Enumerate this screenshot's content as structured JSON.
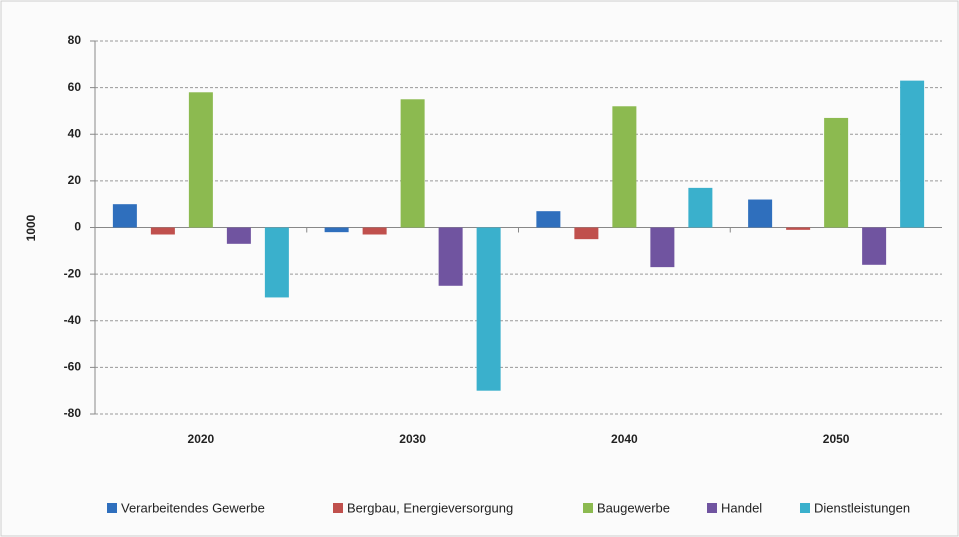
{
  "chart_data": {
    "type": "bar",
    "y_label": "1000",
    "categories": [
      "2020",
      "2030",
      "2040",
      "2050"
    ],
    "series": [
      {
        "name": "Verarbeitendes Gewerbe",
        "color": "#2f6fbd",
        "values": [
          10,
          -2,
          7,
          12
        ]
      },
      {
        "name": "Bergbau, Energieversorgung",
        "color": "#c0504d",
        "values": [
          -3,
          -3,
          -5,
          -1
        ]
      },
      {
        "name": "Baugewerbe",
        "color": "#8cba50",
        "values": [
          58,
          55,
          52,
          47
        ]
      },
      {
        "name": "Handel",
        "color": "#7054a0",
        "values": [
          -7,
          -25,
          -17,
          -16
        ]
      },
      {
        "name": "Dienstleistungen",
        "color": "#3ab0cc",
        "values": [
          -30,
          -70,
          17,
          63
        ]
      }
    ],
    "ylim": [
      -80,
      80
    ],
    "yticks": [
      -80,
      -60,
      -40,
      -20,
      0,
      20,
      40,
      60,
      80
    ],
    "grid": true
  }
}
